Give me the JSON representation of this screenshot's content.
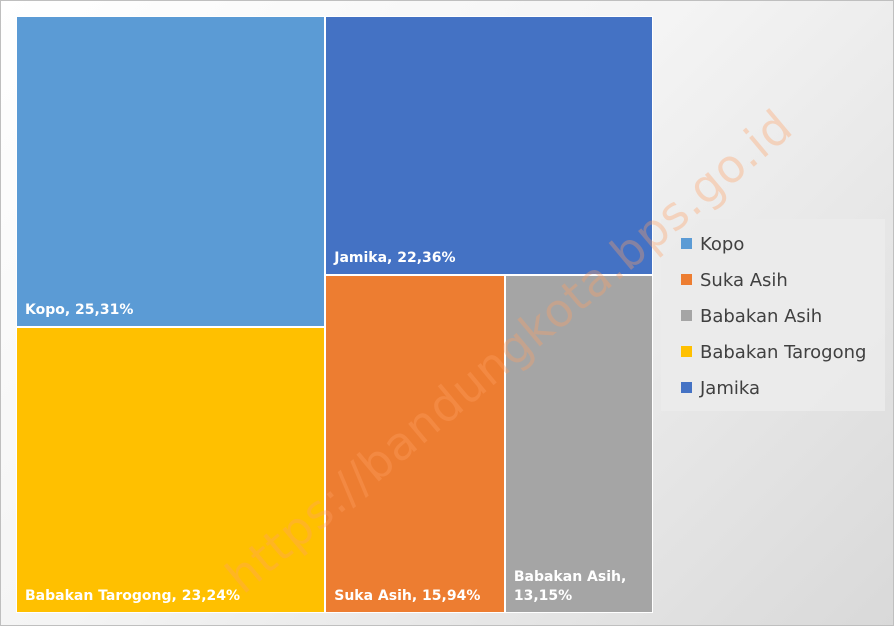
{
  "chart_data": {
    "type": "treemap",
    "categories": [
      "Kopo",
      "Suka Asih",
      "Babakan Asih",
      "Babakan Tarogong",
      "Jamika"
    ],
    "values": [
      25.31,
      15.94,
      13.15,
      23.24,
      22.36
    ],
    "value_labels": [
      "Kopo, 25,31%",
      "Suka Asih, 15,94%",
      "Babakan Asih, 13,15%",
      "Babakan Tarogong, 23,24%",
      "Jamika, 22,36%"
    ],
    "colors": [
      "#5b9bd5",
      "#ed7d31",
      "#a5a5a5",
      "#ffc000",
      "#4472c4"
    ],
    "legend": "right",
    "watermark": "https://bandungkota.bps.go.id"
  }
}
